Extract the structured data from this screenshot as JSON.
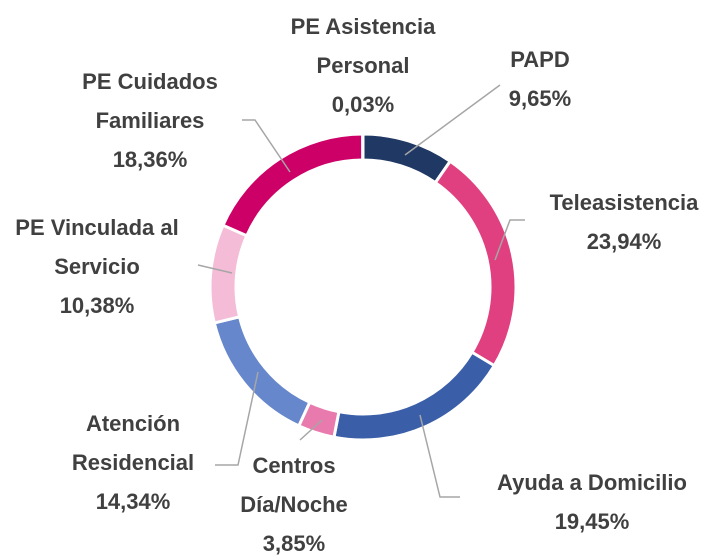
{
  "chart_data": {
    "type": "donut",
    "categories": [
      "PAPD",
      "Teleasistencia",
      "Ayuda a Domicilio",
      "Centros Día/Noche",
      "Atención Residencial",
      "PE Vinculada al Servicio",
      "PE Cuidados Familiares",
      "PE Asistencia Personal"
    ],
    "values": [
      9.65,
      23.94,
      19.45,
      3.85,
      14.34,
      10.38,
      18.36,
      0.03
    ],
    "value_labels": [
      "9,65%",
      "23,94%",
      "19,45%",
      "3,85%",
      "14,34%",
      "10,38%",
      "18,36%",
      "0,03%"
    ],
    "colors": [
      "#1f3864",
      "#e0407f",
      "#3a5fa8",
      "#e87aad",
      "#6787cc",
      "#f4bcd6",
      "#cc0066",
      "#8b1a4f"
    ]
  }
}
